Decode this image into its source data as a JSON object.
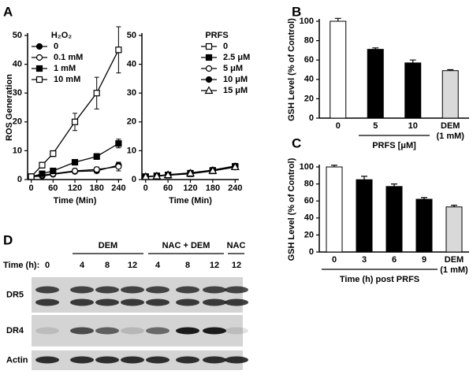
{
  "chart_data": [
    {
      "type": "line",
      "panel": "A",
      "legend_title": "H₂O₂",
      "legend_position": "upper left",
      "xlabel": "Time (Min)",
      "ylabel": "ROS Generation",
      "x": [
        0,
        30,
        60,
        120,
        180,
        240
      ],
      "xlim": [
        -10,
        250
      ],
      "xticks": [
        0,
        60,
        120,
        180,
        240
      ],
      "ylim": [
        0,
        50
      ],
      "yticks": [
        0,
        10,
        20,
        30,
        40,
        50
      ],
      "series": [
        {
          "name": "0",
          "color": "#000000",
          "marker": "circle",
          "marker_fill": "#000000",
          "values": [
            1,
            1.2,
            1.8,
            2.8,
            3,
            5
          ],
          "errors": [
            0.2,
            0.3,
            0.3,
            0.5,
            0.7,
            1
          ]
        },
        {
          "name": "0.1 mM",
          "color": "#000000",
          "marker": "circle",
          "marker_fill": "#ffffff",
          "values": [
            1,
            1.5,
            2,
            3,
            3.5,
            4.5
          ],
          "errors": [
            0.2,
            0.3,
            0.3,
            0.8,
            0.8,
            1.5
          ]
        },
        {
          "name": "1 mM",
          "color": "#000000",
          "marker": "square",
          "marker_fill": "#000000",
          "values": [
            1,
            2,
            3,
            6,
            8,
            12.5
          ],
          "errors": [
            0.3,
            0.5,
            0.5,
            0.8,
            1,
            1.5
          ]
        },
        {
          "name": "10 mM",
          "color": "#000000",
          "marker": "square",
          "marker_fill": "#ffffff",
          "values": [
            1,
            5,
            9,
            20,
            30,
            45
          ],
          "errors": [
            0.5,
            1,
            1,
            3,
            5.5,
            8
          ]
        }
      ]
    },
    {
      "type": "line",
      "legend_title": "PRFS",
      "legend_position": "upper right",
      "xlabel": "Time (Min)",
      "x": [
        0,
        30,
        60,
        120,
        180,
        240
      ],
      "xlim": [
        -10,
        250
      ],
      "xticks": [
        0,
        60,
        120,
        180,
        240
      ],
      "ylim": [
        0,
        50
      ],
      "yticks": [
        0,
        10,
        20,
        30,
        40,
        50
      ],
      "series": [
        {
          "name": "0",
          "color": "#000000",
          "marker": "square",
          "marker_fill": "#ffffff",
          "values": [
            1,
            1.2,
            1.5,
            2,
            3,
            4.5
          ]
        },
        {
          "name": "2.5 μM",
          "color": "#000000",
          "marker": "square",
          "marker_fill": "#000000",
          "values": [
            1,
            1.3,
            1.6,
            2.2,
            3.2,
            4.6
          ]
        },
        {
          "name": "5 μM",
          "color": "#000000",
          "marker": "circle",
          "marker_fill": "#ffffff",
          "values": [
            1,
            1.2,
            1.5,
            2.1,
            3,
            4.3
          ]
        },
        {
          "name": "10 μM",
          "color": "#000000",
          "marker": "circle",
          "marker_fill": "#000000",
          "values": [
            1,
            1.3,
            1.7,
            2.3,
            3.3,
            4.7
          ]
        },
        {
          "name": "15 μM",
          "color": "#000000",
          "marker": "triangle",
          "marker_fill": "#ffffff",
          "values": [
            1,
            1.2,
            1.6,
            2.2,
            3.1,
            4.4
          ]
        }
      ]
    },
    {
      "type": "bar",
      "panel": "B",
      "ylabel": "GSH Level (% of Control)",
      "xlabel": "PRFS [μM]",
      "categories": [
        "0",
        "5",
        "10",
        "DEM\n(1 mM)"
      ],
      "values": [
        100,
        71,
        57,
        49
      ],
      "errors": [
        3,
        1.5,
        3,
        1
      ],
      "colors": [
        "#ffffff",
        "#000000",
        "#000000",
        "#d9d9d9"
      ],
      "ylim": [
        0,
        100
      ],
      "yticks": [
        0,
        20,
        40,
        60,
        80,
        100
      ]
    },
    {
      "type": "bar",
      "panel": "C",
      "ylabel": "GSH Level (% of Control)",
      "xlabel": "Time (h) post PRFS",
      "categories": [
        "0",
        "3",
        "6",
        "9",
        "DEM\n(1 mM)"
      ],
      "values": [
        100,
        85,
        77,
        62,
        53
      ],
      "errors": [
        2,
        4,
        3,
        2,
        2
      ],
      "colors": [
        "#ffffff",
        "#000000",
        "#000000",
        "#000000",
        "#d9d9d9"
      ],
      "ylim": [
        0,
        100
      ],
      "yticks": [
        0,
        20,
        40,
        60,
        80,
        100
      ]
    }
  ],
  "blot": {
    "panel": "D",
    "time_label": "Time (h):",
    "groups": [
      "DEM",
      "NAC + DEM",
      "NAC"
    ],
    "lanes": [
      "0",
      "4",
      "8",
      "12",
      "4",
      "8",
      "12",
      "12"
    ],
    "rows": [
      "DR5",
      "DR4",
      "Actin"
    ]
  }
}
